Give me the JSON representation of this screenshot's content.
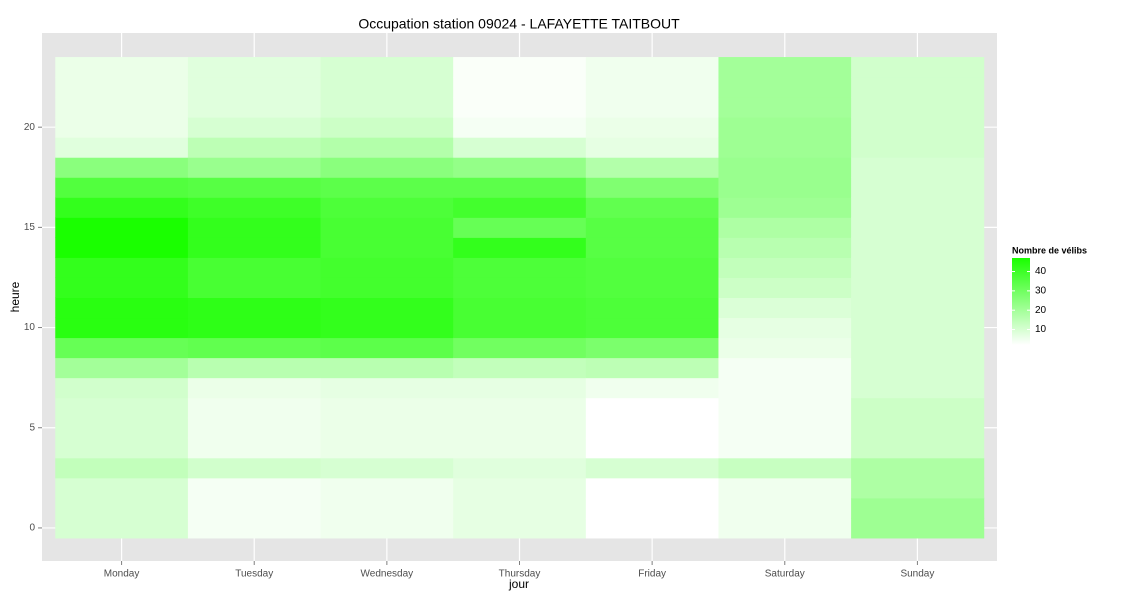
{
  "chart_data": {
    "type": "heatmap",
    "title": "Occupation station 09024 - LAFAYETTE TAITBOUT",
    "x_label": "jour",
    "y_label": "heure",
    "categories": [
      "Monday",
      "Tuesday",
      "Wednesday",
      "Thursday",
      "Friday",
      "Saturday",
      "Sunday"
    ],
    "y": [
      0,
      1,
      2,
      3,
      4,
      5,
      6,
      7,
      8,
      9,
      10,
      11,
      12,
      13,
      14,
      15,
      16,
      17,
      18,
      19,
      20,
      21,
      22,
      23
    ],
    "values": [
      [
        10,
        10,
        10,
        14,
        10,
        10,
        10,
        11,
        20,
        32,
        44,
        44,
        42,
        42,
        47,
        47,
        42,
        36,
        25,
        8,
        6,
        6,
        6,
        6
      ],
      [
        4,
        4,
        4,
        11,
        5,
        5,
        5,
        6,
        16,
        33,
        43,
        43,
        38,
        38,
        42,
        42,
        40,
        35,
        22,
        15,
        10,
        8,
        8,
        8
      ],
      [
        5,
        5,
        5,
        10,
        6,
        6,
        6,
        7,
        16,
        34,
        42,
        42,
        39,
        39,
        38,
        38,
        37,
        34,
        25,
        17,
        12,
        10,
        10,
        10
      ],
      [
        7,
        7,
        7,
        8,
        6,
        6,
        6,
        7,
        14,
        30,
        38,
        38,
        37,
        37,
        42,
        32,
        39,
        34,
        23,
        10,
        4,
        3,
        3,
        3
      ],
      [
        2,
        2,
        2,
        10,
        2,
        2,
        2,
        5,
        15,
        28,
        37,
        37,
        36,
        36,
        35,
        35,
        33,
        27,
        17,
        7,
        6,
        5,
        5,
        5
      ],
      [
        5,
        5,
        5,
        13,
        4,
        4,
        4,
        4,
        4,
        6,
        7,
        9,
        12,
        14,
        16,
        18,
        21,
        22,
        22,
        21,
        21,
        20,
        20,
        20
      ],
      [
        21,
        21,
        18,
        18,
        12,
        12,
        12,
        10,
        10,
        10,
        10,
        10,
        10,
        10,
        10,
        10,
        10,
        10,
        10,
        11,
        11,
        11,
        11,
        11
      ]
    ],
    "ylim": [
      -1.65,
      24.7
    ],
    "yticks": [
      0,
      5,
      10,
      15,
      20
    ],
    "color_low": "#ffffff",
    "color_high": "#1aff00",
    "legend_title": "Nombre de vélibs",
    "colorlim": [
      2,
      47
    ],
    "legend_ticks": [
      10,
      20,
      30,
      40
    ],
    "grid": true
  }
}
